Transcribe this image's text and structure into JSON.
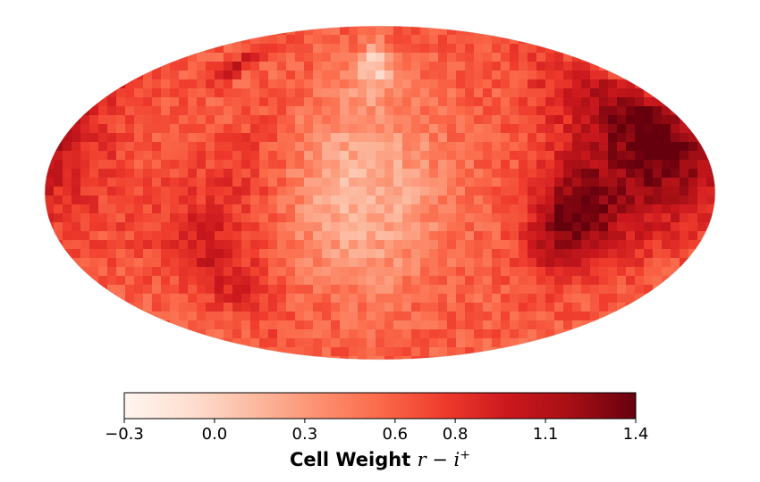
{
  "chart_data": {
    "type": "heatmap",
    "projection": "mollweide",
    "colormap": "Reds",
    "colorbar": {
      "min": -0.3,
      "max": 1.4,
      "ticks": [
        -0.3,
        0.0,
        0.3,
        0.6,
        0.8,
        1.1,
        1.4
      ],
      "tick_labels": [
        "−0.3",
        "0.0",
        "0.3",
        "0.6",
        "0.8",
        "1.1",
        "1.4"
      ],
      "label_text": "Cell Weight",
      "label_math": "r − i",
      "label_sup": "+",
      "orientation": "horizontal",
      "position": "bottom"
    },
    "map_features": [
      {
        "lon": -140,
        "lat": 15,
        "value": 1.15,
        "spread": 40
      },
      {
        "lon": -105,
        "lat": -12,
        "value": 1.3,
        "spread": 22
      },
      {
        "lon": -160,
        "lat": 28,
        "value": 1.05,
        "spread": 25
      },
      {
        "lon": 10,
        "lat": 0,
        "value": 0.15,
        "spread": 45
      },
      {
        "lon": 5,
        "lat": 60,
        "value": 0.05,
        "spread": 15
      },
      {
        "lon": 120,
        "lat": 60,
        "value": 1.05,
        "spread": 12
      },
      {
        "lon": 100,
        "lat": -30,
        "value": 0.95,
        "spread": 30
      },
      {
        "lon": 70,
        "lat": 10,
        "value": 0.8,
        "spread": 25
      },
      {
        "lon": 160,
        "lat": 10,
        "value": 0.75,
        "spread": 30
      }
    ],
    "baseline_value": 0.6
  }
}
